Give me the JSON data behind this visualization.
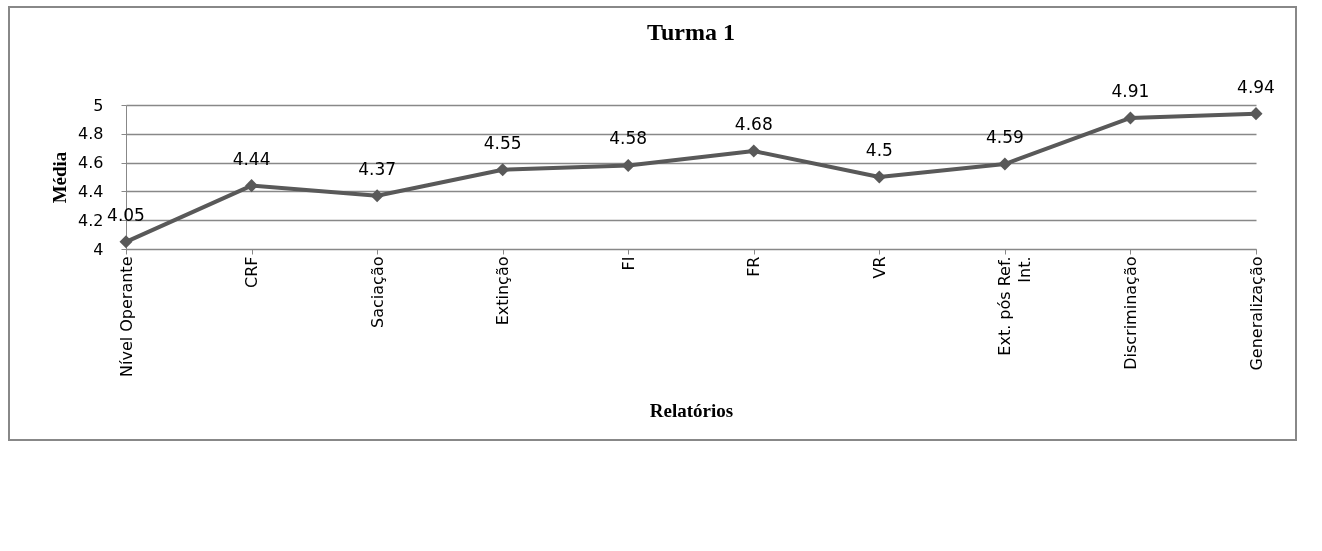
{
  "chart_data": {
    "type": "line",
    "title": "Turma 1",
    "xlabel": "Relatórios",
    "ylabel": "Média",
    "categories": [
      "Nível Operante",
      "CRF",
      "Saciação",
      "Extinção",
      "FI",
      "FR",
      "VR",
      "Ext. pós Ref. Int.",
      "Discriminação",
      "Generalização"
    ],
    "series": [
      {
        "color": "#595959",
        "values": [
          4.05,
          4.44,
          4.37,
          4.55,
          4.58,
          4.68,
          4.5,
          4.59,
          4.91,
          4.94
        ]
      }
    ],
    "ylim": [
      4,
      5
    ],
    "yticks": [
      4,
      4.2,
      4.4,
      4.6,
      4.8,
      5
    ],
    "grid": "y",
    "marker": "diamond",
    "line_style": "solid",
    "data_labels": true,
    "legend": false
  }
}
